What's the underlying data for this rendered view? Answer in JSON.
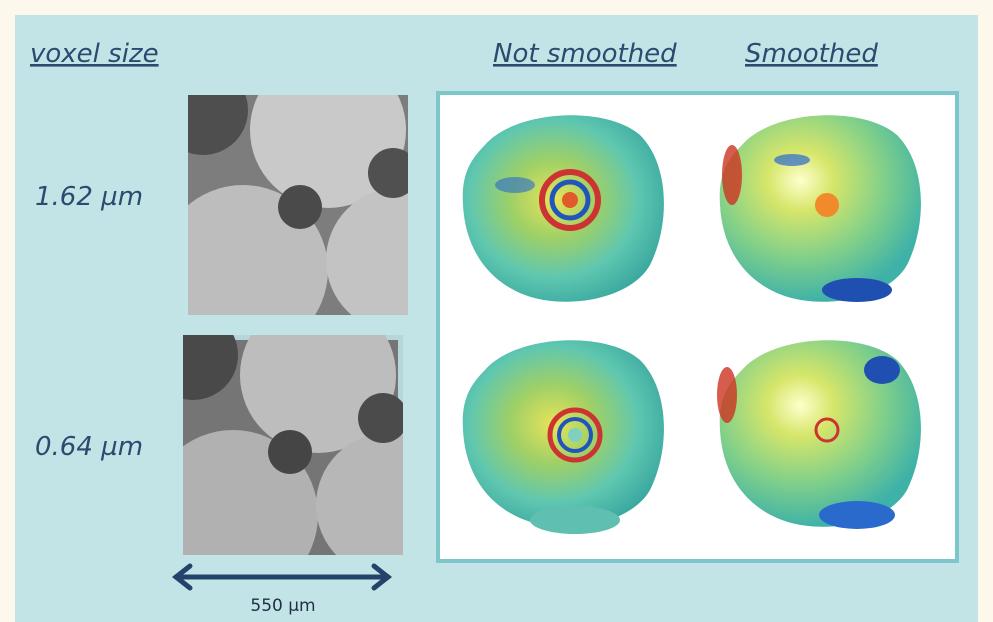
{
  "column_labels": {
    "voxel_size": "voxel size",
    "not_smoothed": "Not smoothed",
    "smoothed": "Smoothed"
  },
  "rows": [
    {
      "voxel_size": "1.62 µm"
    },
    {
      "voxel_size": "0.64 µm"
    }
  ],
  "scale_bar": "550 µm"
}
